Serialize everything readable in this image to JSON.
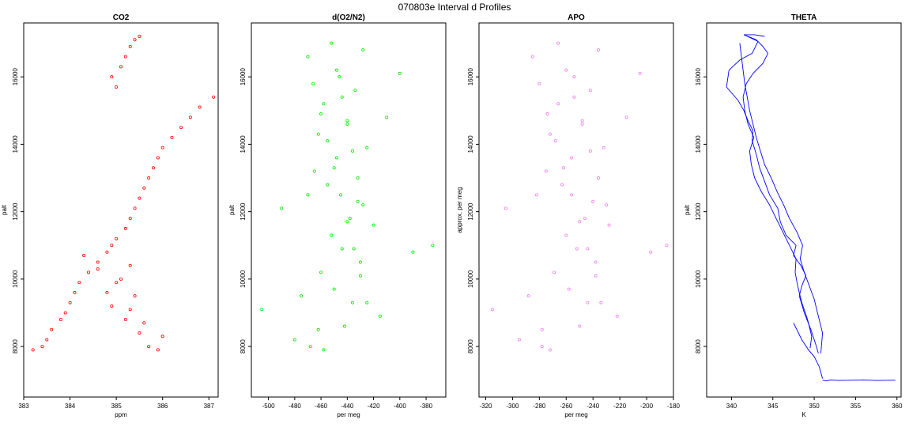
{
  "figure": {
    "title": "070803e   Interval d Profiles"
  },
  "chart_data": [
    {
      "type": "scatter",
      "title": "CO2",
      "xlabel": "ppm",
      "ylabel": "palt",
      "xlim": [
        383,
        387.2
      ],
      "ylim": [
        6500,
        17600
      ],
      "xticks": [
        383,
        384,
        385,
        386,
        387
      ],
      "yticks": [
        8000,
        10000,
        12000,
        14000,
        16000
      ],
      "color": "#ff0000",
      "series": [
        {
          "x": [
            383.2,
            383.4,
            383.5,
            383.6,
            383.8,
            383.9,
            384.0,
            384.1,
            384.2,
            384.4,
            384.6,
            384.8,
            384.9,
            385.0,
            385.2,
            385.3,
            385.4,
            385.5,
            385.6,
            385.7,
            385.8,
            385.9,
            386.0,
            386.2,
            386.4,
            386.6,
            386.8,
            387.1,
            385.0,
            384.9,
            385.1,
            385.2,
            385.3,
            385.4,
            385.5,
            385.3,
            385.1,
            384.8,
            384.9,
            385.2,
            385.5,
            385.7,
            385.9,
            386.0,
            385.6,
            385.3,
            385.4,
            385.0,
            384.6,
            384.3
          ],
          "y": [
            7900,
            8000,
            8200,
            8500,
            8800,
            9000,
            9300,
            9600,
            9900,
            10200,
            10500,
            10800,
            11000,
            11200,
            11500,
            11800,
            12100,
            12400,
            12700,
            13000,
            13300,
            13600,
            13900,
            14200,
            14500,
            14800,
            15100,
            15400,
            15700,
            16000,
            16300,
            16600,
            16900,
            17100,
            17200,
            10400,
            10000,
            9600,
            9200,
            8800,
            8400,
            8000,
            7900,
            8300,
            8700,
            9100,
            9500,
            9900,
            10300,
            10700
          ]
        }
      ]
    },
    {
      "type": "scatter",
      "title": "d(O2/N2)",
      "xlabel": "per meg",
      "ylabel": "palt",
      "xlim": [
        -513,
        -365
      ],
      "ylim": [
        6500,
        17600
      ],
      "xticks": [
        -500,
        -480,
        -460,
        -440,
        -420,
        -400,
        -380
      ],
      "yticks": [
        8000,
        10000,
        12000,
        14000,
        16000
      ],
      "color": "#00ee00",
      "series": [
        {
          "x": [
            -505,
            -490,
            -480,
            -475,
            -470,
            -468,
            -465,
            -462,
            -460,
            -458,
            -455,
            -452,
            -450,
            -448,
            -446,
            -444,
            -442,
            -440,
            -438,
            -436,
            -434,
            -432,
            -430,
            -428,
            -425,
            -420,
            -415,
            -410,
            -400,
            -390,
            -375,
            -470,
            -466,
            -460,
            -455,
            -450,
            -445,
            -440,
            -435,
            -430,
            -425,
            -462,
            -458,
            -452,
            -448,
            -444,
            -440,
            -436,
            -432,
            -428
          ],
          "y": [
            9100,
            12100,
            8200,
            9500,
            12500,
            8000,
            13200,
            14300,
            10200,
            15200,
            12800,
            11300,
            9700,
            13600,
            16000,
            10900,
            8600,
            14700,
            11800,
            9300,
            15600,
            12300,
            10500,
            16800,
            13900,
            11600,
            8900,
            14800,
            16100,
            10800,
            11000,
            16600,
            15800,
            14900,
            14100,
            13300,
            12500,
            11700,
            10900,
            10100,
            9300,
            8500,
            7900,
            17000,
            16200,
            15400,
            14600,
            13800,
            13000,
            12200
          ]
        }
      ]
    },
    {
      "type": "scatter",
      "title": "APO",
      "xlabel": "per meg",
      "ylabel": "approx. per meg",
      "xlim": [
        -325,
        -180
      ],
      "ylim": [
        6500,
        17600
      ],
      "xticks": [
        -320,
        -300,
        -280,
        -260,
        -240,
        -220,
        -200,
        -180
      ],
      "yticks": [
        8000,
        10000,
        12000,
        14000,
        16000
      ],
      "color": "#ee82ee",
      "series": [
        {
          "x": [
            -315,
            -305,
            -295,
            -288,
            -282,
            -278,
            -275,
            -272,
            -269,
            -266,
            -263,
            -260,
            -258,
            -256,
            -254,
            -252,
            -250,
            -248,
            -246,
            -244,
            -242,
            -240,
            -238,
            -236,
            -232,
            -228,
            -222,
            -215,
            -205,
            -197,
            -185,
            -285,
            -280,
            -274,
            -268,
            -262,
            -256,
            -250,
            -244,
            -238,
            -234,
            -278,
            -272,
            -266,
            -260,
            -254,
            -248,
            -242,
            -236,
            -230
          ],
          "y": [
            9100,
            12100,
            8200,
            9500,
            12500,
            8000,
            13200,
            14300,
            10200,
            15200,
            12800,
            11300,
            9700,
            13600,
            16000,
            10900,
            8600,
            14700,
            11800,
            9300,
            15600,
            12300,
            10500,
            16800,
            13900,
            11600,
            8900,
            14800,
            16100,
            10800,
            11000,
            16600,
            15800,
            14900,
            14100,
            13300,
            12500,
            11700,
            10900,
            10100,
            9300,
            8500,
            7900,
            17000,
            16200,
            15400,
            14600,
            13800,
            13000,
            12200
          ]
        }
      ]
    },
    {
      "type": "line",
      "title": "THETA",
      "xlabel": "K",
      "ylabel": "palt",
      "xlim": [
        337,
        360.5
      ],
      "ylim": [
        6500,
        17600
      ],
      "xticks": [
        340,
        345,
        350,
        355,
        360
      ],
      "yticks": [
        8000,
        10000,
        12000,
        14000,
        16000
      ],
      "color": "#0000ff",
      "series": [
        {
          "x": [
            350.5,
            350.2,
            349.6,
            348.8,
            348.2,
            348.5,
            349.0,
            348.4,
            347.5,
            347.8,
            346.6,
            345.9,
            345.6,
            344.6,
            344.0,
            343.4,
            343.0,
            342.5,
            342.6,
            342.0,
            341.5,
            340.8,
            339.4,
            339.7,
            341.0,
            342.5,
            343.2,
            341.5,
            342.8,
            344.0
          ],
          "y": [
            7800,
            8050,
            8500,
            9000,
            9500,
            9800,
            10100,
            10400,
            10700,
            11000,
            11300,
            11700,
            12100,
            12500,
            12900,
            13300,
            13700,
            14100,
            14400,
            14700,
            15000,
            15300,
            15700,
            16200,
            16500,
            16700,
            17050,
            17250,
            17250,
            17200
          ]
        },
        {
          "x": [
            349.5,
            349.7,
            349.2,
            348.5,
            348.0,
            347.7,
            347.8,
            347.0,
            346.2,
            345.4,
            344.6,
            343.6,
            342.8,
            342.4,
            342.2,
            342.7,
            342.0,
            341.6,
            341.4,
            341.8,
            342.6,
            343.8,
            344.4,
            343.8,
            343.0,
            342.0,
            341.5
          ],
          "y": [
            7950,
            8300,
            8800,
            9300,
            9800,
            10200,
            10600,
            11000,
            11400,
            11800,
            12200,
            12600,
            13000,
            13400,
            13800,
            14200,
            14600,
            15000,
            15400,
            15800,
            16100,
            16400,
            16700,
            16900,
            17100,
            17200,
            17250
          ]
        },
        {
          "x": [
            350.8,
            351.0,
            350.5,
            350.0,
            349.4,
            348.8,
            348.3,
            348.6,
            347.9,
            347.0,
            346.3,
            345.5,
            344.8,
            344.0,
            343.5,
            343.0,
            342.6,
            342.2,
            341.9,
            341.6,
            341.4,
            341.2,
            341.0
          ],
          "y": [
            7800,
            8400,
            8900,
            9400,
            9800,
            10200,
            10600,
            11000,
            11400,
            11800,
            12200,
            12600,
            13000,
            13400,
            13800,
            14200,
            14600,
            15000,
            15400,
            15800,
            16200,
            16600,
            17000
          ]
        },
        {
          "x": [
            351.0,
            351.5,
            352.0,
            353.0,
            354.5,
            356.0,
            357.5,
            359.8
          ],
          "y": [
            7000,
            6980,
            7010,
            6990,
            7000,
            7010,
            6990,
            7000
          ]
        },
        {
          "x": [
            347.5,
            348.5,
            349.3,
            350.0,
            350.6,
            351.0
          ],
          "y": [
            8700,
            8200,
            7900,
            7700,
            7400,
            7050
          ]
        }
      ]
    }
  ]
}
